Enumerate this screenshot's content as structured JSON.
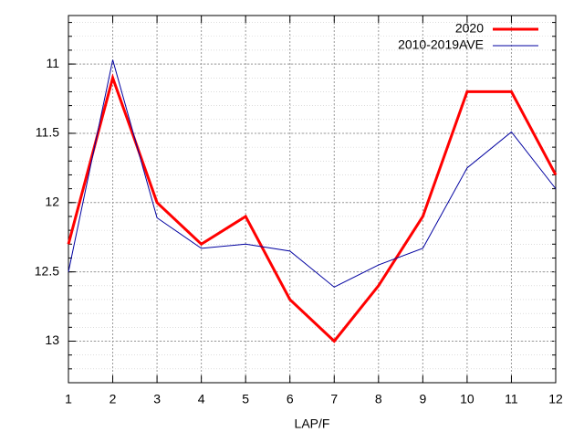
{
  "chart_data": {
    "type": "line",
    "xlabel": "LAP/F",
    "x": [
      1,
      2,
      3,
      4,
      5,
      6,
      7,
      8,
      9,
      10,
      11,
      12
    ],
    "series": [
      {
        "name": "2020",
        "color": "#ff0000",
        "width": 3,
        "values": [
          12.3,
          11.1,
          12.0,
          12.3,
          12.1,
          12.7,
          13.0,
          12.6,
          12.1,
          11.2,
          11.2,
          11.8
        ]
      },
      {
        "name": "2010-2019AVE",
        "color": "#0000a0",
        "width": 1,
        "values": [
          12.5,
          10.97,
          12.11,
          12.33,
          12.3,
          12.35,
          12.61,
          12.45,
          12.33,
          11.75,
          11.49,
          11.9
        ]
      }
    ],
    "xlim": [
      1,
      12
    ],
    "xticks": [
      1,
      2,
      3,
      4,
      5,
      6,
      7,
      8,
      9,
      10,
      11,
      12
    ],
    "ylim": [
      13.3,
      10.65
    ],
    "yticks": [
      11,
      11.5,
      12,
      12.5,
      13
    ],
    "grid": true,
    "minor_grid_step": 0.1,
    "legend": "top-right"
  }
}
